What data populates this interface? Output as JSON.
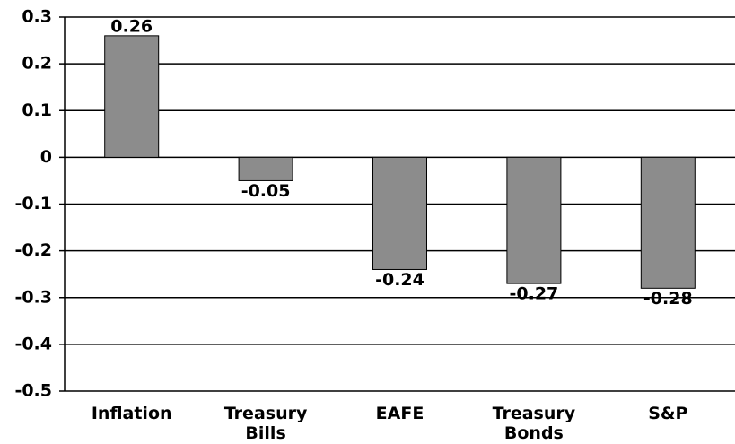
{
  "chart_data": {
    "type": "bar",
    "categories": [
      "Inflation",
      "Treasury Bills",
      "EAFE",
      "Treasury Bonds",
      "S&P"
    ],
    "values": [
      0.26,
      -0.05,
      -0.24,
      -0.27,
      -0.28
    ],
    "color": "#8c8c8c",
    "ylim": [
      -0.5,
      0.3
    ],
    "yticks": [
      -0.5,
      -0.4,
      -0.3,
      -0.2,
      -0.1,
      0,
      0.1,
      0.2,
      0.3
    ],
    "grid": true
  }
}
